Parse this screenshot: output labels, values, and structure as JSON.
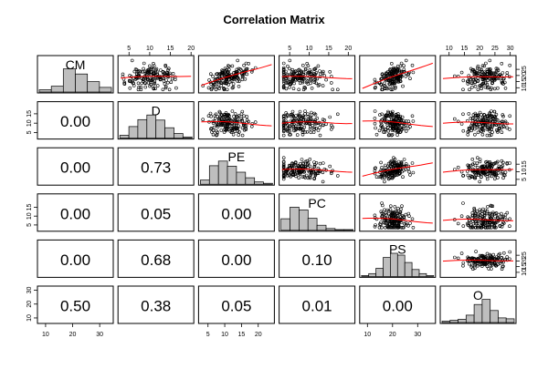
{
  "chart_data": {
    "type": "scatter",
    "title": "Correlation Matrix",
    "variables": [
      "CM",
      "D",
      "PE",
      "PC",
      "PS",
      "O"
    ],
    "panels": {
      "upper": "scatter with red smoother",
      "diagonal": "histogram with variable name",
      "lower": "correlation p-value"
    },
    "axes": {
      "top_ticks": [
        {
          "column": 1,
          "labels": [
            "5",
            "10",
            "15",
            "20"
          ]
        },
        {
          "column": 3,
          "labels": [
            "5",
            "10",
            "15",
            "20"
          ]
        },
        {
          "column": 5,
          "labels": [
            "10",
            "15",
            "20",
            "25",
            "30"
          ]
        }
      ],
      "bottom_ticks": [
        {
          "column": 0,
          "labels": [
            "10",
            "20",
            "30"
          ]
        },
        {
          "column": 2,
          "labels": [
            "5",
            "10",
            "15",
            "20"
          ]
        },
        {
          "column": 4,
          "labels": [
            "10",
            "20",
            "30"
          ]
        }
      ],
      "left_ticks": [
        {
          "row": 1,
          "labels": [
            "5",
            "10",
            "15"
          ]
        },
        {
          "row": 3,
          "labels": [
            "5",
            "10",
            "15"
          ]
        },
        {
          "row": 5,
          "labels": [
            "10",
            "20",
            "30"
          ]
        }
      ],
      "right_ticks": [
        {
          "row": 0,
          "labels": [
            "10",
            "15",
            "20",
            "25"
          ]
        },
        {
          "row": 2,
          "labels": [
            "5",
            "10",
            "15"
          ]
        },
        {
          "row": 4,
          "labels": [
            "10",
            "15",
            "20",
            "25"
          ]
        }
      ]
    },
    "ranges": {
      "CM": [
        8,
        34
      ],
      "D": [
        3,
        20
      ],
      "PE": [
        3,
        24
      ],
      "PC": [
        3,
        21
      ],
      "PS": [
        8,
        36
      ],
      "O": [
        8,
        31
      ]
    },
    "p_values": [
      {
        "row": 1,
        "col": 0,
        "label": "0.00"
      },
      {
        "row": 2,
        "col": 0,
        "label": "0.00"
      },
      {
        "row": 2,
        "col": 1,
        "label": "0.73"
      },
      {
        "row": 3,
        "col": 0,
        "label": "0.00"
      },
      {
        "row": 3,
        "col": 1,
        "label": "0.05"
      },
      {
        "row": 3,
        "col": 2,
        "label": "0.00"
      },
      {
        "row": 4,
        "col": 0,
        "label": "0.00"
      },
      {
        "row": 4,
        "col": 1,
        "label": "0.68"
      },
      {
        "row": 4,
        "col": 2,
        "label": "0.00"
      },
      {
        "row": 4,
        "col": 3,
        "label": "0.10"
      },
      {
        "row": 5,
        "col": 0,
        "label": "0.50"
      },
      {
        "row": 5,
        "col": 1,
        "label": "0.38"
      },
      {
        "row": 5,
        "col": 2,
        "label": "0.05"
      },
      {
        "row": 5,
        "col": 3,
        "label": "0.01"
      },
      {
        "row": 5,
        "col": 4,
        "label": "0.00"
      }
    ],
    "histograms": {
      "CM": [
        0.1,
        0.25,
        1.0,
        0.78,
        0.45,
        0.2
      ],
      "D": [
        0.12,
        0.5,
        0.8,
        1.0,
        0.78,
        0.45,
        0.2,
        0.05
      ],
      "PE": [
        0.18,
        0.8,
        1.0,
        0.78,
        0.52,
        0.28,
        0.1,
        0.04
      ],
      "PC": [
        0.5,
        1.0,
        0.88,
        0.52,
        0.22,
        0.08,
        0.03,
        0.03
      ],
      "PS": [
        0.04,
        0.12,
        0.35,
        0.82,
        1.0,
        0.92,
        0.6,
        0.3,
        0.12,
        0.04
      ],
      "O": [
        0.06,
        0.1,
        0.14,
        0.32,
        0.78,
        1.0,
        0.52,
        0.2,
        0.16
      ]
    },
    "colors": {
      "points": "#000000",
      "smoother": "#ff0000",
      "histogram_fill": "#bebebe",
      "panel_border": "#000000"
    }
  }
}
